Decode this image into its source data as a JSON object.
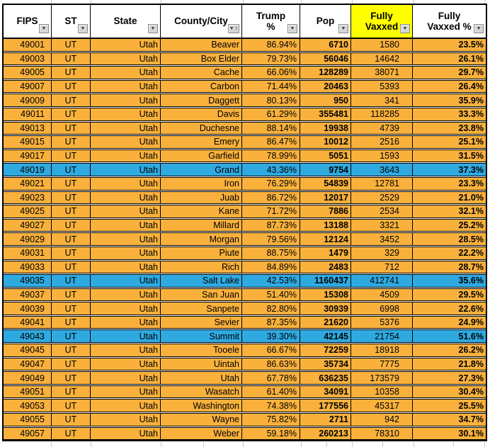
{
  "colors": {
    "row_orange": "#f9b13c",
    "row_blue": "#2faae1",
    "header_highlight_yellow": "#ffff00",
    "grid_line": "#000000",
    "filter_button_bg": "#d6d6d6"
  },
  "icons": {
    "chevron_down": "▼",
    "arrow_up": "↑"
  },
  "header": {
    "columns": [
      {
        "key": "fips",
        "lines": [
          "FIPS"
        ],
        "filter": "chevron-down",
        "highlight": false
      },
      {
        "key": "st",
        "lines": [
          "ST"
        ],
        "filter": "chevron-down",
        "highlight": false
      },
      {
        "key": "state",
        "lines": [
          "State"
        ],
        "filter": "chevron-down",
        "highlight": false
      },
      {
        "key": "county",
        "lines": [
          "County/City"
        ],
        "filter": "chevron-down-sorted-asc",
        "highlight": false
      },
      {
        "key": "trump_pct",
        "lines": [
          "Trump",
          "%"
        ],
        "filter": "chevron-down",
        "highlight": false
      },
      {
        "key": "pop",
        "lines": [
          "Pop"
        ],
        "filter": "chevron-down",
        "highlight": false
      },
      {
        "key": "fully_vaxxed",
        "lines": [
          "Fully",
          "Vaxxed"
        ],
        "filter": "chevron-down",
        "highlight": true
      },
      {
        "key": "fully_vaxxed_pct",
        "lines": [
          "Fully",
          "Vaxxed %"
        ],
        "filter": "chevron-down",
        "highlight": false
      }
    ]
  },
  "rows": [
    {
      "fips": "49001",
      "st": "UT",
      "state": "Utah",
      "county": "Beaver",
      "trump_pct": "86.94%",
      "pop": "6710",
      "fully_vaxxed": "1580",
      "fully_vaxxed_pct": "23.5%",
      "highlight": false
    },
    {
      "fips": "49003",
      "st": "UT",
      "state": "Utah",
      "county": "Box Elder",
      "trump_pct": "79.73%",
      "pop": "56046",
      "fully_vaxxed": "14642",
      "fully_vaxxed_pct": "26.1%",
      "highlight": false
    },
    {
      "fips": "49005",
      "st": "UT",
      "state": "Utah",
      "county": "Cache",
      "trump_pct": "66.06%",
      "pop": "128289",
      "fully_vaxxed": "38071",
      "fully_vaxxed_pct": "29.7%",
      "highlight": false
    },
    {
      "fips": "49007",
      "st": "UT",
      "state": "Utah",
      "county": "Carbon",
      "trump_pct": "71.44%",
      "pop": "20463",
      "fully_vaxxed": "5393",
      "fully_vaxxed_pct": "26.4%",
      "highlight": false
    },
    {
      "fips": "49009",
      "st": "UT",
      "state": "Utah",
      "county": "Daggett",
      "trump_pct": "80.13%",
      "pop": "950",
      "fully_vaxxed": "341",
      "fully_vaxxed_pct": "35.9%",
      "highlight": false
    },
    {
      "fips": "49011",
      "st": "UT",
      "state": "Utah",
      "county": "Davis",
      "trump_pct": "61.29%",
      "pop": "355481",
      "fully_vaxxed": "118285",
      "fully_vaxxed_pct": "33.3%",
      "highlight": false
    },
    {
      "fips": "49013",
      "st": "UT",
      "state": "Utah",
      "county": "Duchesne",
      "trump_pct": "88.14%",
      "pop": "19938",
      "fully_vaxxed": "4739",
      "fully_vaxxed_pct": "23.8%",
      "highlight": false
    },
    {
      "fips": "49015",
      "st": "UT",
      "state": "Utah",
      "county": "Emery",
      "trump_pct": "86.47%",
      "pop": "10012",
      "fully_vaxxed": "2516",
      "fully_vaxxed_pct": "25.1%",
      "highlight": false
    },
    {
      "fips": "49017",
      "st": "UT",
      "state": "Utah",
      "county": "Garfield",
      "trump_pct": "78.99%",
      "pop": "5051",
      "fully_vaxxed": "1593",
      "fully_vaxxed_pct": "31.5%",
      "highlight": false
    },
    {
      "fips": "49019",
      "st": "UT",
      "state": "Utah",
      "county": "Grand",
      "trump_pct": "43.36%",
      "pop": "9754",
      "fully_vaxxed": "3643",
      "fully_vaxxed_pct": "37.3%",
      "highlight": true
    },
    {
      "fips": "49021",
      "st": "UT",
      "state": "Utah",
      "county": "Iron",
      "trump_pct": "76.29%",
      "pop": "54839",
      "fully_vaxxed": "12781",
      "fully_vaxxed_pct": "23.3%",
      "highlight": false
    },
    {
      "fips": "49023",
      "st": "UT",
      "state": "Utah",
      "county": "Juab",
      "trump_pct": "86.72%",
      "pop": "12017",
      "fully_vaxxed": "2529",
      "fully_vaxxed_pct": "21.0%",
      "highlight": false
    },
    {
      "fips": "49025",
      "st": "UT",
      "state": "Utah",
      "county": "Kane",
      "trump_pct": "71.72%",
      "pop": "7886",
      "fully_vaxxed": "2534",
      "fully_vaxxed_pct": "32.1%",
      "highlight": false
    },
    {
      "fips": "49027",
      "st": "UT",
      "state": "Utah",
      "county": "Millard",
      "trump_pct": "87.73%",
      "pop": "13188",
      "fully_vaxxed": "3321",
      "fully_vaxxed_pct": "25.2%",
      "highlight": false
    },
    {
      "fips": "49029",
      "st": "UT",
      "state": "Utah",
      "county": "Morgan",
      "trump_pct": "79.56%",
      "pop": "12124",
      "fully_vaxxed": "3452",
      "fully_vaxxed_pct": "28.5%",
      "highlight": false
    },
    {
      "fips": "49031",
      "st": "UT",
      "state": "Utah",
      "county": "Piute",
      "trump_pct": "88.75%",
      "pop": "1479",
      "fully_vaxxed": "329",
      "fully_vaxxed_pct": "22.2%",
      "highlight": false
    },
    {
      "fips": "49033",
      "st": "UT",
      "state": "Utah",
      "county": "Rich",
      "trump_pct": "84.89%",
      "pop": "2483",
      "fully_vaxxed": "712",
      "fully_vaxxed_pct": "28.7%",
      "highlight": false
    },
    {
      "fips": "49035",
      "st": "UT",
      "state": "Utah",
      "county": "Salt Lake",
      "trump_pct": "42.53%",
      "pop": "1160437",
      "fully_vaxxed": "412741",
      "fully_vaxxed_pct": "35.6%",
      "highlight": true
    },
    {
      "fips": "49037",
      "st": "UT",
      "state": "Utah",
      "county": "San Juan",
      "trump_pct": "51.40%",
      "pop": "15308",
      "fully_vaxxed": "4509",
      "fully_vaxxed_pct": "29.5%",
      "highlight": false
    },
    {
      "fips": "49039",
      "st": "UT",
      "state": "Utah",
      "county": "Sanpete",
      "trump_pct": "82.80%",
      "pop": "30939",
      "fully_vaxxed": "6998",
      "fully_vaxxed_pct": "22.6%",
      "highlight": false
    },
    {
      "fips": "49041",
      "st": "UT",
      "state": "Utah",
      "county": "Sevier",
      "trump_pct": "87.35%",
      "pop": "21620",
      "fully_vaxxed": "5376",
      "fully_vaxxed_pct": "24.9%",
      "highlight": false
    },
    {
      "fips": "49043",
      "st": "UT",
      "state": "Utah",
      "county": "Summit",
      "trump_pct": "39.30%",
      "pop": "42145",
      "fully_vaxxed": "21754",
      "fully_vaxxed_pct": "51.6%",
      "highlight": true
    },
    {
      "fips": "49045",
      "st": "UT",
      "state": "Utah",
      "county": "Tooele",
      "trump_pct": "66.67%",
      "pop": "72259",
      "fully_vaxxed": "18918",
      "fully_vaxxed_pct": "26.2%",
      "highlight": false
    },
    {
      "fips": "49047",
      "st": "UT",
      "state": "Utah",
      "county": "Uintah",
      "trump_pct": "86.63%",
      "pop": "35734",
      "fully_vaxxed": "7775",
      "fully_vaxxed_pct": "21.8%",
      "highlight": false
    },
    {
      "fips": "49049",
      "st": "UT",
      "state": "Utah",
      "county": "Utah",
      "trump_pct": "67.78%",
      "pop": "636235",
      "fully_vaxxed": "173579",
      "fully_vaxxed_pct": "27.3%",
      "highlight": false
    },
    {
      "fips": "49051",
      "st": "UT",
      "state": "Utah",
      "county": "Wasatch",
      "trump_pct": "61.40%",
      "pop": "34091",
      "fully_vaxxed": "10358",
      "fully_vaxxed_pct": "30.4%",
      "highlight": false
    },
    {
      "fips": "49053",
      "st": "UT",
      "state": "Utah",
      "county": "Washington",
      "trump_pct": "74.38%",
      "pop": "177556",
      "fully_vaxxed": "45317",
      "fully_vaxxed_pct": "25.5%",
      "highlight": false
    },
    {
      "fips": "49055",
      "st": "UT",
      "state": "Utah",
      "county": "Wayne",
      "trump_pct": "75.82%",
      "pop": "2711",
      "fully_vaxxed": "942",
      "fully_vaxxed_pct": "34.7%",
      "highlight": false
    },
    {
      "fips": "49057",
      "st": "UT",
      "state": "Utah",
      "county": "Weber",
      "trump_pct": "59.18%",
      "pop": "260213",
      "fully_vaxxed": "78310",
      "fully_vaxxed_pct": "30.1%",
      "highlight": false
    }
  ]
}
